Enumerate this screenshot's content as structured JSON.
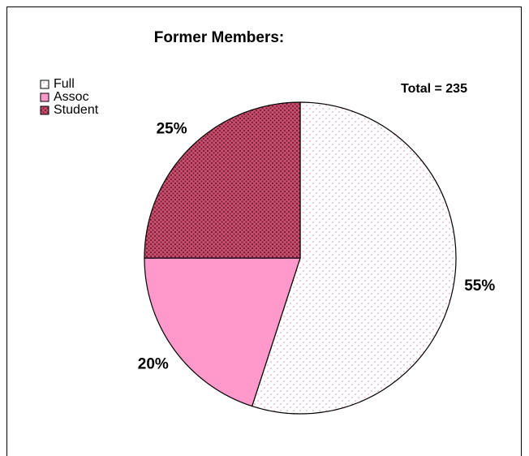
{
  "chart_data": {
    "type": "pie",
    "title": "Former Members:",
    "annotation": "Total = 235",
    "categories": [
      "Full",
      "Assoc",
      "Student"
    ],
    "values": [
      55,
      20,
      25
    ],
    "value_labels": [
      "55%",
      "20%",
      "25%"
    ],
    "colors": [
      "#ffffff",
      "#ff99cc",
      "#c8506e"
    ],
    "start_angle": 0,
    "direction": "clockwise",
    "legend": "upper-left"
  }
}
